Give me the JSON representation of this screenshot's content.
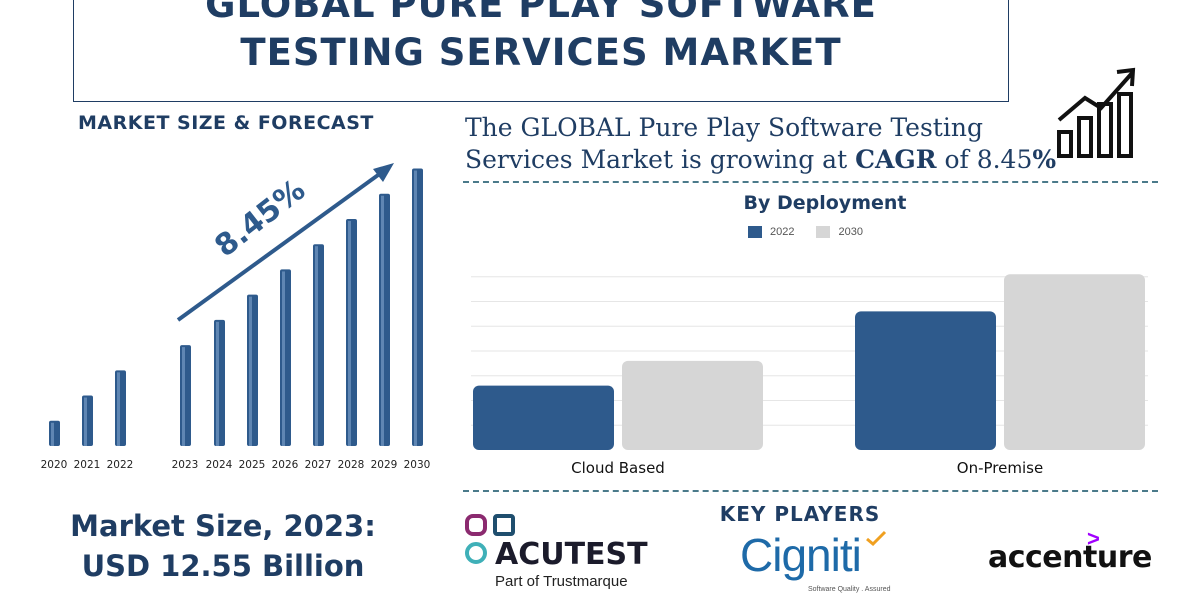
{
  "title": {
    "line1": "GLOBAL PURE PLAY SOFTWARE",
    "line2": "TESTING SERVICES MARKET"
  },
  "left_section": {
    "heading": "MARKET SIZE & FORECAST",
    "growth_label": "8.45%",
    "market_size_line1": "Market Size, 2023:",
    "market_size_line2": "USD 12.55 Billion"
  },
  "cagr_statement": {
    "line1": "The GLOBAL Pure Play Software Testing",
    "line2_prefix": "Services Market is growing at ",
    "line2_bold": "CAGR",
    "line2_mid": " of 8.45",
    "line2_suffix": "%"
  },
  "icons": {
    "growth": "bar-chart-growth-icon",
    "forecast_arrow": "trend-arrow-icon"
  },
  "colors": {
    "primary": "#2e5a8c",
    "secondary": "#d6d6d6",
    "text": "#1f3d63",
    "accent_purple": "#a100ff",
    "acutest_teal": "#3fb0b8",
    "acutest_purple": "#8b2a6f"
  },
  "key_players": {
    "heading": "KEY PLAYERS",
    "acutest_name": "ACUTEST",
    "acutest_sub": "Part of Trustmarque",
    "cigniti_name": "Cigniti",
    "cigniti_sub": "Software Quality . Assured",
    "accenture_name": "accenture",
    "accenture_mark": ">"
  },
  "chart_data": [
    {
      "type": "bar",
      "title": "",
      "categories": [
        "2020",
        "2021",
        "2022",
        "2023",
        "2024",
        "2025",
        "2026",
        "2027",
        "2028",
        "2029",
        "2030"
      ],
      "values": [
        1.0,
        2.0,
        3.0,
        4.0,
        5.0,
        6.0,
        7.0,
        8.0,
        9.0,
        10.0,
        11.0
      ],
      "annotation": "8.45%",
      "ylabel": "",
      "xlabel": "",
      "ylim": [
        0,
        11.1
      ]
    },
    {
      "type": "bar",
      "title": "By Deployment",
      "categories": [
        "Cloud Based",
        "On-Premise"
      ],
      "series": [
        {
          "name": "2022",
          "values": [
            2.6,
            5.6
          ]
        },
        {
          "name": "2030",
          "values": [
            3.6,
            7.1
          ]
        }
      ],
      "ylim": [
        0,
        8.0
      ],
      "grid": true,
      "legend": "top-center"
    }
  ]
}
